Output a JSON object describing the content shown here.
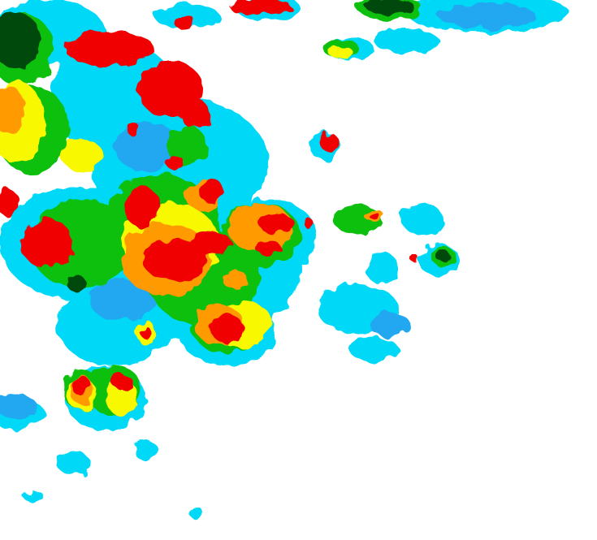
{
  "map": {
    "palette": {
      "background": "#ffffff",
      "light_cyan": "#00d8f8",
      "blue": "#20a8f0",
      "green": "#10c010",
      "dark_green": "#004a10",
      "yellow": "#f8f800",
      "orange": "#ff9a00",
      "red": "#f00000"
    }
  }
}
